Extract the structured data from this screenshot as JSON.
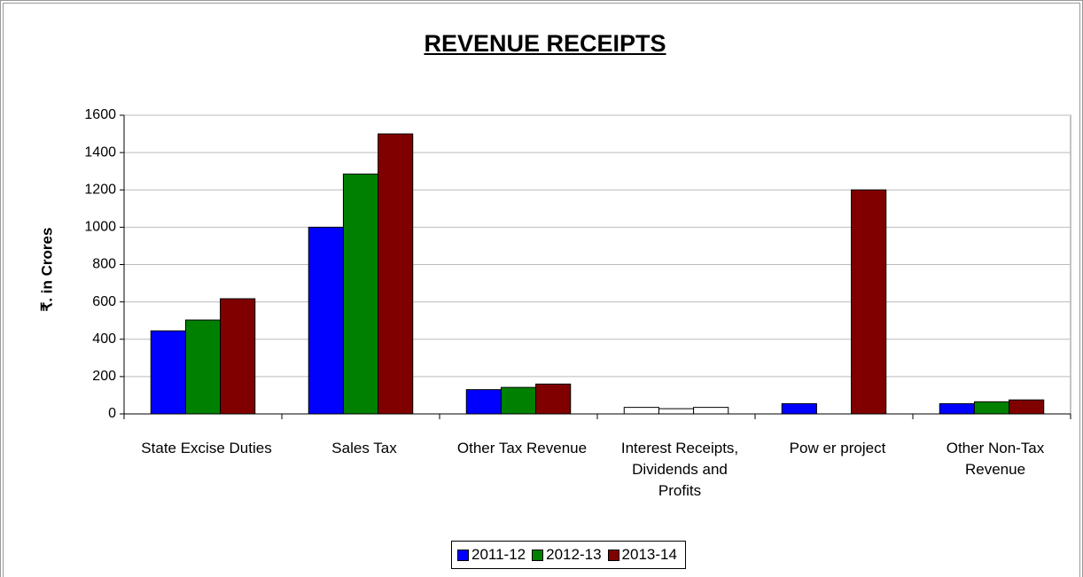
{
  "chart_data": {
    "type": "bar",
    "title": "REVENUE RECEIPTS",
    "y_label": "₹. in Crores",
    "categories": [
      "State Excise Duties",
      "Sales Tax",
      "Other Tax Revenue",
      "Interest Receipts, Dividends and Profits",
      "Pow er project",
      "Other Non-Tax Revenue"
    ],
    "series": [
      {
        "name": "2011-12",
        "color": "#0000ff",
        "values": [
          445,
          1000,
          130,
          35,
          55,
          55
        ]
      },
      {
        "name": "2012-13",
        "color": "#008000",
        "values": [
          503,
          1285,
          142,
          28,
          null,
          65
        ]
      },
      {
        "name": "2013-14",
        "color": "#800000",
        "values": [
          617,
          1500,
          160,
          35,
          1200,
          75
        ]
      }
    ],
    "category_colors": [
      null,
      null,
      null,
      "#ffffff",
      null,
      null
    ],
    "ylim": [
      0,
      1600
    ],
    "yticks": [
      0,
      200,
      400,
      600,
      800,
      1000,
      1200,
      1400,
      1600
    ],
    "grid": true,
    "legend": "bottom"
  }
}
